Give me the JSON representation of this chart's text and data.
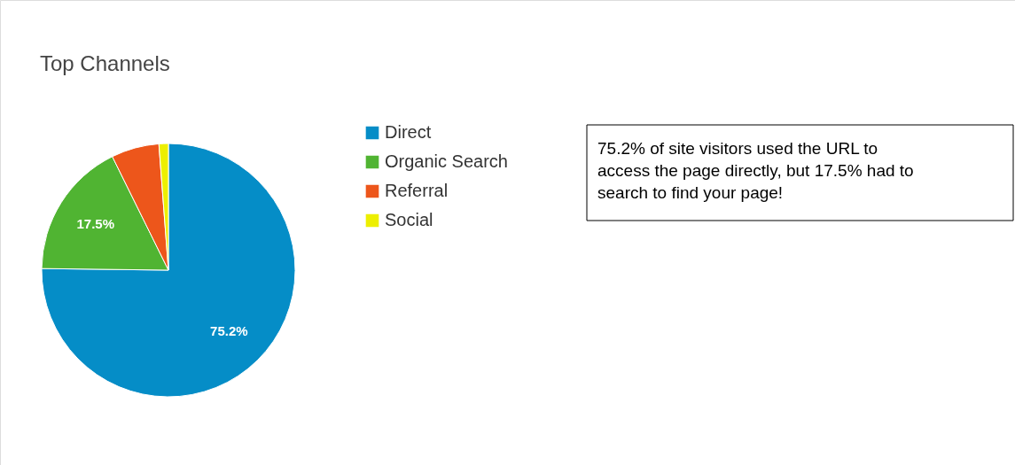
{
  "chart_data": {
    "type": "pie",
    "title": "Top Channels",
    "categories": [
      "Direct",
      "Organic Search",
      "Referral",
      "Social"
    ],
    "values": [
      75.2,
      17.5,
      6.1,
      1.2
    ],
    "colors": [
      "#058dc7",
      "#50b432",
      "#ed561b",
      "#edef00"
    ],
    "value_labels": [
      "75.2%",
      "17.5%",
      null,
      null
    ],
    "legend": "right",
    "annotations": [
      "75.2% of site visitors used the URL to access the page directly, but 17.5% had to search to find your page!"
    ]
  }
}
